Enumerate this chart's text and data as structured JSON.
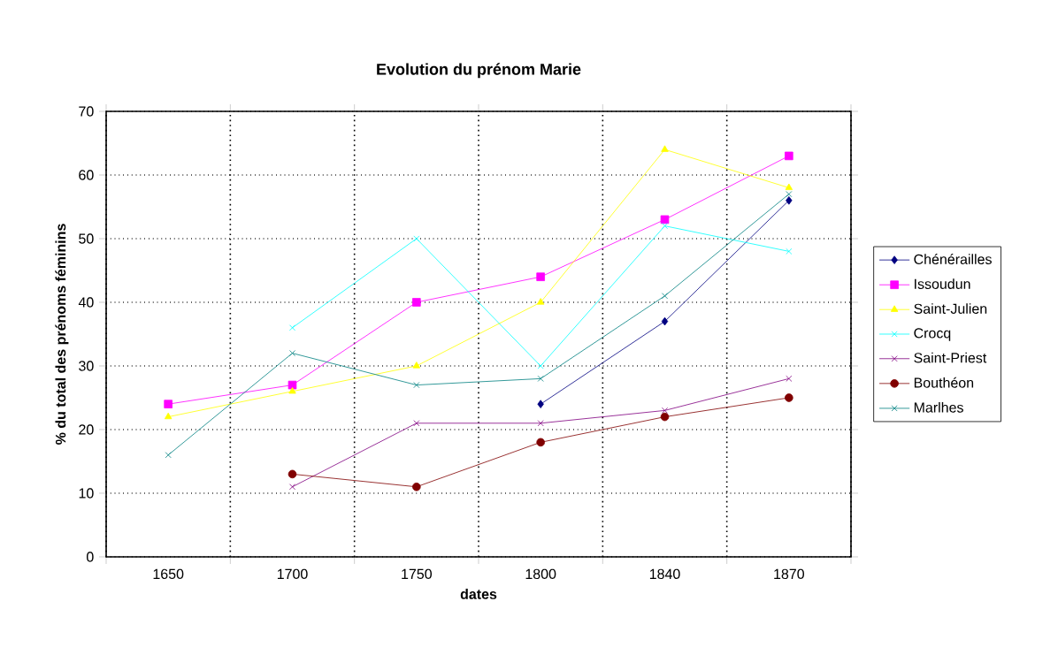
{
  "chart_data": {
    "type": "line",
    "title": "Evolution du prénom Marie",
    "xlabel": "dates",
    "ylabel": "% du total des prénoms féminins",
    "categories": [
      "1650",
      "1700",
      "1750",
      "1800",
      "1840",
      "1870"
    ],
    "ylim": [
      0,
      70
    ],
    "yticks": [
      0,
      10,
      20,
      30,
      40,
      50,
      60,
      70
    ],
    "grid": true,
    "legend": "right",
    "series": [
      {
        "name": "Chénérailles",
        "color": "#000080",
        "marker": "diamond",
        "values": [
          null,
          null,
          null,
          24,
          37,
          56
        ]
      },
      {
        "name": "Issoudun",
        "color": "#ff00ff",
        "marker": "square",
        "values": [
          24,
          27,
          40,
          44,
          53,
          63
        ]
      },
      {
        "name": "Saint-Julien",
        "color": "#ffff00",
        "marker": "triangle",
        "values": [
          22,
          26,
          30,
          40,
          64,
          58
        ]
      },
      {
        "name": "Crocq",
        "color": "#00ffff",
        "marker": "cross",
        "values": [
          null,
          36,
          50,
          30,
          52,
          48
        ]
      },
      {
        "name": "Saint-Priest",
        "color": "#800080",
        "marker": "cross",
        "values": [
          null,
          11,
          21,
          21,
          23,
          28
        ]
      },
      {
        "name": "Bouthéon",
        "color": "#800000",
        "marker": "circle",
        "values": [
          null,
          13,
          11,
          18,
          22,
          25
        ]
      },
      {
        "name": "Marlhes",
        "color": "#008080",
        "marker": "cross",
        "values": [
          16,
          32,
          27,
          28,
          41,
          57
        ]
      }
    ]
  }
}
